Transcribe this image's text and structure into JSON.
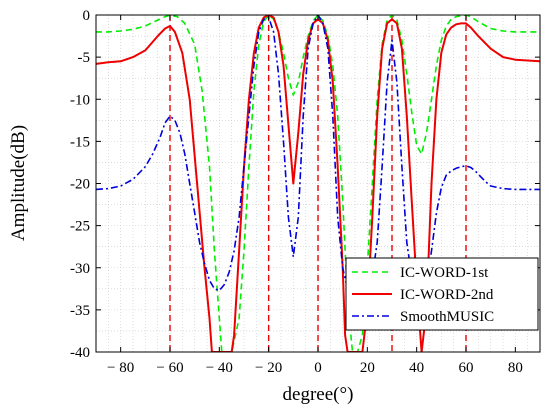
{
  "chart_data": {
    "type": "line",
    "xlabel": "degree(°)",
    "ylabel": "Amplitude(dB)",
    "xlim": [
      -90,
      90
    ],
    "ylim": [
      -40,
      0
    ],
    "x_ticks": [
      -80,
      -60,
      -40,
      -20,
      0,
      20,
      40,
      60,
      80
    ],
    "x_tick_labels": [
      "− 80",
      "− 60",
      "− 40",
      "− 20",
      "0",
      "20",
      "40",
      "60",
      "80"
    ],
    "y_ticks": [
      0,
      -5,
      -10,
      -15,
      -20,
      -25,
      -30,
      -35,
      -40
    ],
    "y_tick_labels": [
      "0",
      "-5",
      "-10",
      "-15",
      "-20",
      "-25",
      "-30",
      "-35",
      "-40"
    ],
    "grid": "minor dotted",
    "legend_position": "bottom-right",
    "true_doas": [
      -60,
      -20,
      0,
      30,
      60
    ],
    "series": [
      {
        "name": "IC-WORD-1st",
        "color": "#00ee00",
        "dash": "dashed",
        "x": [
          -90,
          -85,
          -80,
          -75,
          -70,
          -65,
          -62,
          -60,
          -57,
          -54,
          -50,
          -47,
          -44,
          -42,
          -40,
          -39,
          -38,
          -35,
          -32,
          -30,
          -28,
          -26,
          -24,
          -22,
          -20,
          -18,
          -16,
          -14,
          -12,
          -10,
          -8,
          -6,
          -4,
          -2,
          0,
          2,
          4,
          6,
          8,
          10,
          12,
          14,
          16,
          18,
          20,
          22,
          24,
          26,
          28,
          30,
          32,
          34,
          36,
          38,
          40,
          42,
          44,
          46,
          48,
          50,
          52,
          54,
          56,
          58,
          60,
          62,
          65,
          70,
          75,
          80,
          85,
          90
        ],
        "y": [
          -2.0,
          -2.0,
          -1.9,
          -1.7,
          -1.3,
          -0.6,
          -0.2,
          0,
          -0.2,
          -1.0,
          -3.5,
          -9,
          -18,
          -28,
          -36,
          -40,
          -40,
          -40,
          -36,
          -28,
          -18,
          -9,
          -3.5,
          -0.8,
          0,
          -0.5,
          -2,
          -4.5,
          -7.5,
          -9.5,
          -8,
          -5,
          -2.5,
          -0.7,
          0,
          -0.7,
          -2.5,
          -6,
          -12,
          -22,
          -34,
          -40,
          -40,
          -38,
          -30,
          -20,
          -10,
          -3.5,
          -0.6,
          0,
          -0.6,
          -3,
          -7,
          -11.5,
          -15.5,
          -16.5,
          -14,
          -10,
          -6,
          -3,
          -1.3,
          -0.5,
          -0.2,
          -0.1,
          0,
          -0.2,
          -0.8,
          -1.6,
          -1.9,
          -2.0,
          -2.0,
          -2.0
        ]
      },
      {
        "name": "IC-WORD-2nd",
        "color": "#ee0000",
        "dash": "solid",
        "x": [
          -90,
          -85,
          -80,
          -75,
          -70,
          -65,
          -62,
          -60,
          -58,
          -55,
          -52,
          -49,
          -46,
          -44,
          -43,
          -42,
          -35,
          -34,
          -32,
          -30,
          -28,
          -26,
          -24,
          -22,
          -20,
          -18,
          -16,
          -14,
          -12,
          -10,
          -8,
          -6,
          -4,
          -2,
          0,
          2,
          4,
          6,
          8,
          10,
          11,
          12,
          18,
          20,
          22,
          24,
          26,
          28,
          30,
          32,
          34,
          36,
          38,
          40,
          41,
          42,
          44,
          46,
          48,
          50,
          52,
          54,
          56,
          58,
          60,
          62,
          65,
          70,
          75,
          80,
          85,
          90
        ],
        "y": [
          -5.8,
          -5.6,
          -5.5,
          -5.0,
          -4.2,
          -2.5,
          -1.6,
          -1.3,
          -2,
          -4.5,
          -10,
          -20,
          -30,
          -36,
          -40,
          -40,
          -40,
          -38,
          -28,
          -18,
          -10,
          -4.5,
          -1.5,
          -0.3,
          0,
          -0.3,
          -2,
          -6,
          -13,
          -20,
          -14,
          -7,
          -3,
          -1,
          -0.5,
          -1,
          -3,
          -8,
          -18,
          -30,
          -38,
          -40,
          -40,
          -35,
          -24,
          -12,
          -4,
          -1,
          -0.5,
          -1,
          -4,
          -12,
          -22,
          -32,
          -36,
          -40,
          -35,
          -20,
          -10,
          -4.5,
          -2.3,
          -1.5,
          -1.1,
          -1,
          -1,
          -1.5,
          -2.5,
          -4,
          -5,
          -5.3,
          -5.4,
          -5.5
        ]
      },
      {
        "name": "SmoothMUSIC",
        "color": "#0000dd",
        "dash": "dashdot",
        "x": [
          -90,
          -85,
          -80,
          -75,
          -70,
          -67,
          -64,
          -62,
          -60,
          -58,
          -56,
          -54,
          -52,
          -50,
          -48,
          -46,
          -44,
          -42,
          -40,
          -38,
          -36,
          -34,
          -32,
          -30,
          -28,
          -26,
          -24,
          -22,
          -20,
          -18,
          -16,
          -14,
          -12,
          -10,
          -8,
          -6,
          -4,
          -2,
          0,
          2,
          4,
          6,
          8,
          10,
          12,
          14,
          16,
          18,
          20,
          22,
          24,
          26,
          28,
          30,
          32,
          34,
          36,
          38,
          40,
          42,
          44,
          46,
          48,
          50,
          52,
          54,
          56,
          58,
          60,
          62,
          64,
          66,
          68,
          70,
          75,
          80,
          85,
          90
        ],
        "y": [
          -20.7,
          -20.6,
          -20.3,
          -19.5,
          -18,
          -16.5,
          -14.5,
          -12.8,
          -12,
          -12.5,
          -14,
          -16.5,
          -20,
          -23.5,
          -27,
          -29.5,
          -31.5,
          -32.5,
          -32.7,
          -32,
          -30.5,
          -28,
          -24,
          -18,
          -12,
          -6,
          -2,
          -0.5,
          -0.3,
          -2,
          -7,
          -15,
          -24,
          -28.7,
          -24,
          -12,
          -4,
          -1,
          0,
          -1,
          -4,
          -12,
          -24,
          -30,
          -32.5,
          -33,
          -33,
          -32.8,
          -32.5,
          -31,
          -27,
          -18,
          -8,
          -3,
          -8,
          -18,
          -27,
          -31,
          -33,
          -33.5,
          -32,
          -28,
          -23.5,
          -20.5,
          -19,
          -18.5,
          -18.2,
          -18,
          -17.9,
          -18.1,
          -18.6,
          -19.2,
          -19.8,
          -20.3,
          -20.6,
          -20.7,
          -20.7,
          -20.7
        ]
      }
    ]
  }
}
